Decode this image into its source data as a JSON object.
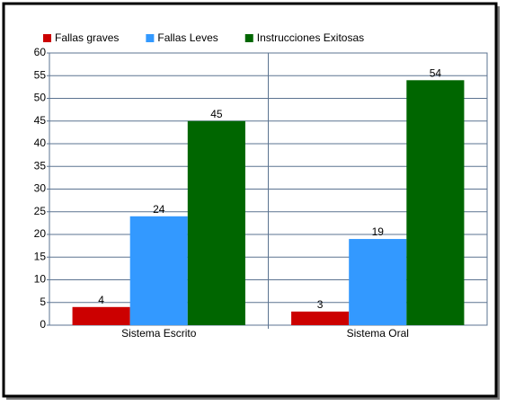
{
  "chart_data": {
    "type": "bar",
    "categories": [
      "Sistema Escrito",
      "Sistema Oral"
    ],
    "series": [
      {
        "name": "Fallas graves",
        "color": "#cc0000",
        "values": [
          4,
          3
        ]
      },
      {
        "name": "Fallas Leves",
        "color": "#3399ff",
        "values": [
          24,
          19
        ]
      },
      {
        "name": "Instrucciones Exitosas",
        "color": "#006600",
        "values": [
          45,
          54
        ]
      }
    ],
    "ylim": [
      0,
      60
    ],
    "yticks": [
      0,
      5,
      10,
      15,
      20,
      25,
      30,
      35,
      40,
      45,
      50,
      55,
      60
    ],
    "grid": true,
    "legend": "top"
  }
}
